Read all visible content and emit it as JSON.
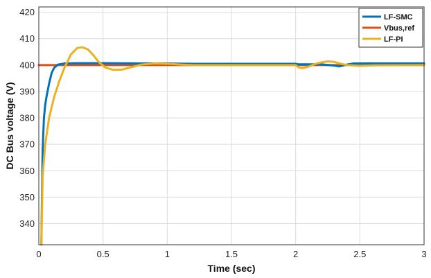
{
  "chart_data": {
    "type": "line",
    "title": "",
    "xlabel": "Time (sec)",
    "ylabel": "DC Bus voltage (V)",
    "xlim": [
      0,
      3
    ],
    "ylim": [
      332,
      422
    ],
    "xticks": [
      0,
      0.5,
      1,
      1.5,
      2,
      2.5,
      3
    ],
    "xtick_labels": [
      "0",
      "0.5",
      "1",
      "1.5",
      "2",
      "2.5",
      "3"
    ],
    "yticks": [
      340,
      350,
      360,
      370,
      380,
      390,
      400,
      410,
      420
    ],
    "ytick_labels": [
      "340",
      "350",
      "360",
      "370",
      "380",
      "390",
      "400",
      "410",
      "420"
    ],
    "grid": true,
    "legend_position": "top-right",
    "series": [
      {
        "name": "LF-SMC",
        "color": "#0072BD",
        "x": [
          0.02,
          0.025,
          0.03,
          0.04,
          0.05,
          0.06,
          0.08,
          0.1,
          0.12,
          0.15,
          0.2,
          0.3,
          0.5,
          0.8,
          1.0,
          1.2,
          1.5,
          1.8,
          2.0,
          2.02,
          2.1,
          2.2,
          2.3,
          2.34,
          2.4,
          2.45,
          2.5,
          2.7,
          3.0
        ],
        "y": [
          332,
          352,
          368,
          380,
          385,
          388,
          393,
          397,
          399,
          400.2,
          400.6,
          400.7,
          400.7,
          400.6,
          400.6,
          400.5,
          400.5,
          400.5,
          400.5,
          400.3,
          400.3,
          400.3,
          399.8,
          399.5,
          400.2,
          400.6,
          400.6,
          400.6,
          400.6
        ]
      },
      {
        "name": "Vbus,ref",
        "color": "#D95319",
        "x": [
          0,
          3
        ],
        "y": [
          400,
          400
        ]
      },
      {
        "name": "LF-PI",
        "color": "#EDB120",
        "x": [
          0.02,
          0.025,
          0.03,
          0.05,
          0.08,
          0.12,
          0.16,
          0.2,
          0.25,
          0.3,
          0.34,
          0.38,
          0.42,
          0.47,
          0.52,
          0.58,
          0.65,
          0.72,
          0.8,
          0.9,
          1.0,
          1.1,
          1.2,
          1.4,
          1.6,
          1.8,
          2.0,
          2.02,
          2.05,
          2.1,
          2.15,
          2.2,
          2.25,
          2.3,
          2.35,
          2.4,
          2.5,
          2.6,
          3.0
        ],
        "y": [
          332,
          345,
          358,
          370,
          380,
          388,
          394,
          399,
          404,
          406.5,
          406.7,
          406,
          404,
          401,
          399,
          398.2,
          398.3,
          399.2,
          400.2,
          400.6,
          400.5,
          400.2,
          400,
          400,
          400,
          400,
          400,
          399.2,
          398.8,
          399.4,
          400.4,
          401,
          401.4,
          401.2,
          400.5,
          400,
          399.7,
          399.9,
          400
        ]
      }
    ]
  }
}
